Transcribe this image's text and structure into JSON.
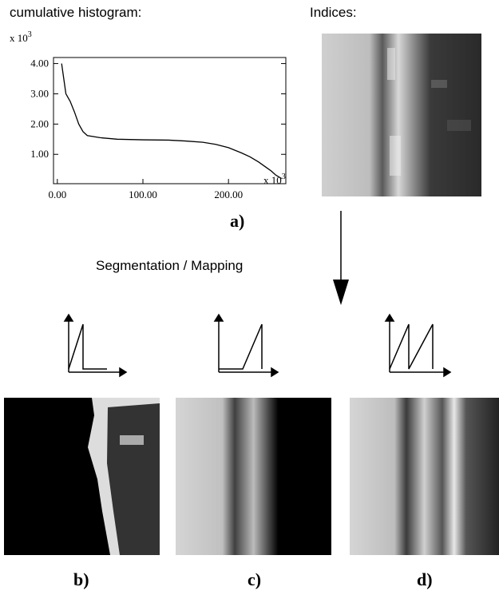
{
  "chart_data": {
    "type": "line",
    "title": "cumulative histogram:",
    "x_multiplier": {
      "base": "x 10",
      "exponent": "3"
    },
    "y_multiplier": {
      "base": "x 10",
      "exponent": "3"
    },
    "x": [
      5,
      7,
      10,
      15,
      20,
      25,
      30,
      35,
      50,
      70,
      100,
      130,
      150,
      170,
      185,
      200,
      215,
      225,
      235,
      245,
      250,
      255,
      262
    ],
    "series": [
      {
        "color": "#000000",
        "values": [
          4.0,
          3.6,
          3.0,
          2.75,
          2.4,
          2.0,
          1.75,
          1.62,
          1.55,
          1.5,
          1.48,
          1.47,
          1.44,
          1.4,
          1.33,
          1.22,
          1.05,
          0.92,
          0.75,
          0.55,
          0.45,
          0.32,
          0.2
        ]
      }
    ],
    "xlim": [
      -4.5,
      267
    ],
    "ylim": [
      0.03,
      4.2
    ],
    "xticks": [
      {
        "value": 0,
        "label": "0.00"
      },
      {
        "value": 100,
        "label": "100.00"
      },
      {
        "value": 200,
        "label": "200.00"
      }
    ],
    "yticks": [
      {
        "value": 1,
        "label": "1.00"
      },
      {
        "value": 2,
        "label": "2.00"
      },
      {
        "value": 3,
        "label": "3.00"
      },
      {
        "value": 4,
        "label": "4.00"
      }
    ],
    "grid": false
  },
  "figure": {
    "indices_title": "Indices:",
    "label_a": "a)",
    "arrow_label": "Segmentation / Mapping",
    "label_b": "b)",
    "label_c": "c)",
    "label_d": "d)"
  }
}
